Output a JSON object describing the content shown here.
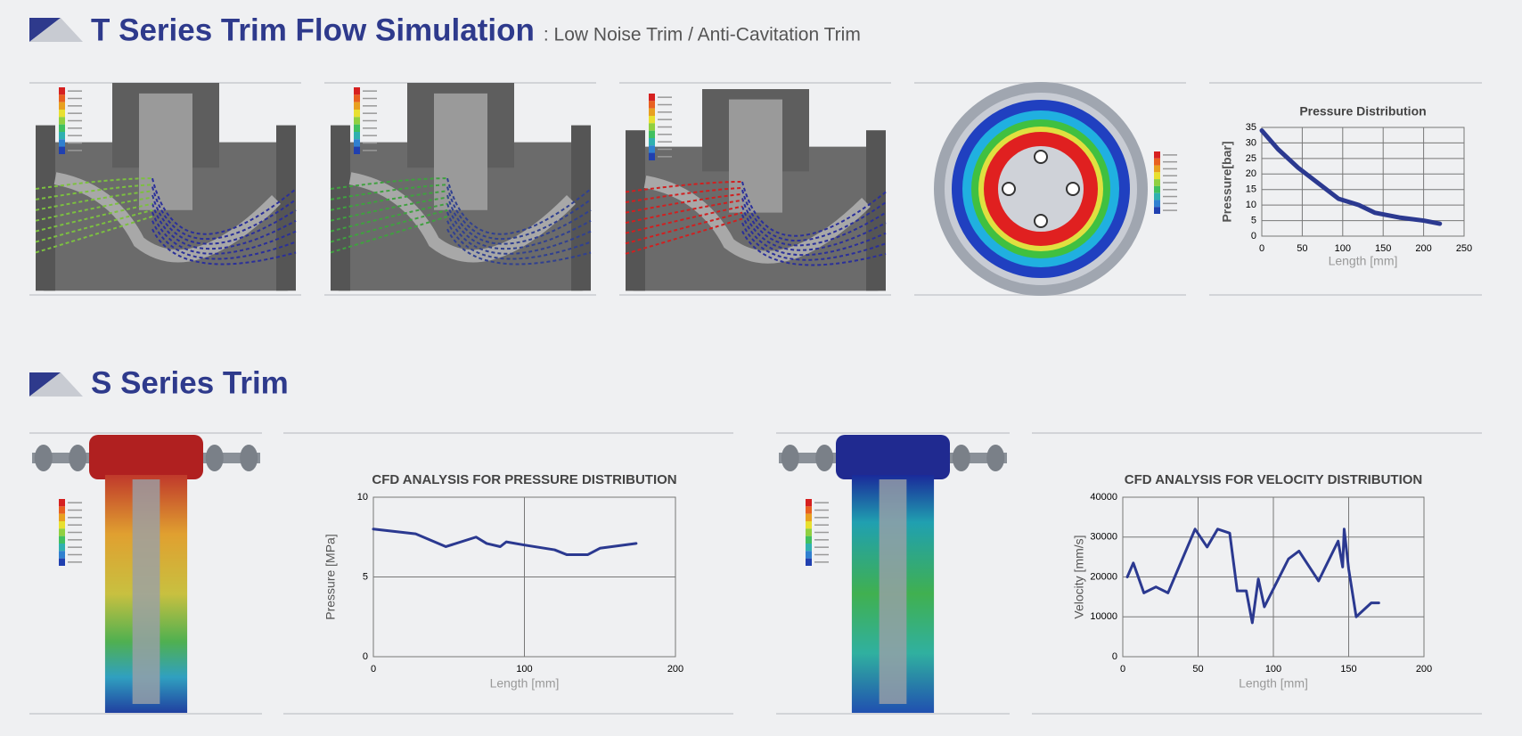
{
  "sections": [
    {
      "title": "T Series Trim Flow Simulation",
      "subtitle": ": Low Noise Trim / Anti-Cavitation Trim"
    },
    {
      "title": "S Series Trim"
    }
  ],
  "chart_data": [
    {
      "type": "line",
      "title": "Pressure Distribution",
      "x_label": "Length [mm]",
      "y_label": "Pressure[bar]",
      "x": [
        0,
        20,
        45,
        70,
        95,
        120,
        140,
        170,
        200,
        220
      ],
      "values": [
        34,
        28,
        22,
        17,
        12,
        10,
        7.5,
        6,
        5,
        4
      ],
      "color": "#2b3990",
      "xlim": [
        0,
        250
      ],
      "xticks": [
        0,
        50,
        100,
        150,
        200,
        250
      ],
      "ylim": [
        0,
        35
      ],
      "yticks": [
        0,
        5,
        10,
        15,
        20,
        25,
        30,
        35
      ],
      "grid": true
    },
    {
      "type": "line",
      "title": "CFD ANALYSIS FOR PRESSURE DISTRIBUTION",
      "x_label": "Length [mm]",
      "y_label": "Pressure [MPa]",
      "x": [
        0,
        28,
        48,
        68,
        75,
        84,
        88,
        100,
        120,
        128,
        142,
        150,
        174
      ],
      "values": [
        8,
        7.7,
        6.9,
        7.5,
        7.1,
        6.9,
        7.2,
        7,
        6.7,
        6.4,
        6.4,
        6.8,
        7.1
      ],
      "color": "#2b3990",
      "xlim": [
        0,
        200
      ],
      "xticks": [
        0,
        100,
        200
      ],
      "ylim": [
        0,
        10
      ],
      "yticks": [
        0,
        5,
        10
      ],
      "grid": true
    },
    {
      "type": "line",
      "title": "CFD ANALYSIS FOR VELOCITY DISTRIBUTION",
      "x_label": "Length [mm]",
      "y_label": "Velocity [mm/s]",
      "x": [
        3,
        7,
        14,
        22,
        30,
        48,
        56,
        63,
        71,
        76,
        82,
        86,
        90,
        94,
        110,
        117,
        130,
        143,
        146,
        147,
        150,
        155,
        165,
        170
      ],
      "values": [
        20000,
        23500,
        16000,
        17500,
        16000,
        32000,
        27500,
        32000,
        31000,
        16500,
        16500,
        8500,
        19500,
        12500,
        24500,
        26500,
        19000,
        29000,
        22500,
        32000,
        22000,
        10000,
        13500,
        13500
      ],
      "color": "#2b3990",
      "xlim": [
        0,
        200
      ],
      "xticks": [
        0,
        50,
        100,
        150,
        200
      ],
      "ylim": [
        0,
        40000
      ],
      "yticks": [
        0,
        10000,
        20000,
        30000,
        40000
      ],
      "grid": true
    }
  ]
}
